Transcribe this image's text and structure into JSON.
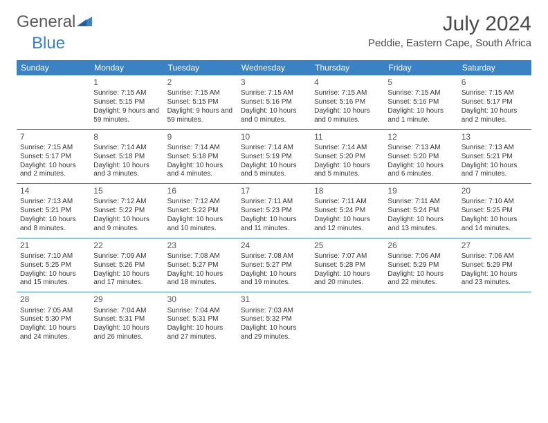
{
  "brand": {
    "part1": "General",
    "part2": "Blue"
  },
  "title": "July 2024",
  "location": "Peddie, Eastern Cape, South Africa",
  "colors": {
    "header_bg": "#3b82c4",
    "header_fg": "#ffffff",
    "cell_border": "#3b82c4",
    "text": "#333333",
    "title_color": "#4a4a4a"
  },
  "weekdays": [
    "Sunday",
    "Monday",
    "Tuesday",
    "Wednesday",
    "Thursday",
    "Friday",
    "Saturday"
  ],
  "weeks": [
    [
      {
        "n": "",
        "sr": "",
        "ss": "",
        "dl": ""
      },
      {
        "n": "1",
        "sr": "Sunrise: 7:15 AM",
        "ss": "Sunset: 5:15 PM",
        "dl": "Daylight: 9 hours and 59 minutes."
      },
      {
        "n": "2",
        "sr": "Sunrise: 7:15 AM",
        "ss": "Sunset: 5:15 PM",
        "dl": "Daylight: 9 hours and 59 minutes."
      },
      {
        "n": "3",
        "sr": "Sunrise: 7:15 AM",
        "ss": "Sunset: 5:16 PM",
        "dl": "Daylight: 10 hours and 0 minutes."
      },
      {
        "n": "4",
        "sr": "Sunrise: 7:15 AM",
        "ss": "Sunset: 5:16 PM",
        "dl": "Daylight: 10 hours and 0 minutes."
      },
      {
        "n": "5",
        "sr": "Sunrise: 7:15 AM",
        "ss": "Sunset: 5:16 PM",
        "dl": "Daylight: 10 hours and 1 minute."
      },
      {
        "n": "6",
        "sr": "Sunrise: 7:15 AM",
        "ss": "Sunset: 5:17 PM",
        "dl": "Daylight: 10 hours and 2 minutes."
      }
    ],
    [
      {
        "n": "7",
        "sr": "Sunrise: 7:15 AM",
        "ss": "Sunset: 5:17 PM",
        "dl": "Daylight: 10 hours and 2 minutes."
      },
      {
        "n": "8",
        "sr": "Sunrise: 7:14 AM",
        "ss": "Sunset: 5:18 PM",
        "dl": "Daylight: 10 hours and 3 minutes."
      },
      {
        "n": "9",
        "sr": "Sunrise: 7:14 AM",
        "ss": "Sunset: 5:18 PM",
        "dl": "Daylight: 10 hours and 4 minutes."
      },
      {
        "n": "10",
        "sr": "Sunrise: 7:14 AM",
        "ss": "Sunset: 5:19 PM",
        "dl": "Daylight: 10 hours and 5 minutes."
      },
      {
        "n": "11",
        "sr": "Sunrise: 7:14 AM",
        "ss": "Sunset: 5:20 PM",
        "dl": "Daylight: 10 hours and 5 minutes."
      },
      {
        "n": "12",
        "sr": "Sunrise: 7:13 AM",
        "ss": "Sunset: 5:20 PM",
        "dl": "Daylight: 10 hours and 6 minutes."
      },
      {
        "n": "13",
        "sr": "Sunrise: 7:13 AM",
        "ss": "Sunset: 5:21 PM",
        "dl": "Daylight: 10 hours and 7 minutes."
      }
    ],
    [
      {
        "n": "14",
        "sr": "Sunrise: 7:13 AM",
        "ss": "Sunset: 5:21 PM",
        "dl": "Daylight: 10 hours and 8 minutes."
      },
      {
        "n": "15",
        "sr": "Sunrise: 7:12 AM",
        "ss": "Sunset: 5:22 PM",
        "dl": "Daylight: 10 hours and 9 minutes."
      },
      {
        "n": "16",
        "sr": "Sunrise: 7:12 AM",
        "ss": "Sunset: 5:22 PM",
        "dl": "Daylight: 10 hours and 10 minutes."
      },
      {
        "n": "17",
        "sr": "Sunrise: 7:11 AM",
        "ss": "Sunset: 5:23 PM",
        "dl": "Daylight: 10 hours and 11 minutes."
      },
      {
        "n": "18",
        "sr": "Sunrise: 7:11 AM",
        "ss": "Sunset: 5:24 PM",
        "dl": "Daylight: 10 hours and 12 minutes."
      },
      {
        "n": "19",
        "sr": "Sunrise: 7:11 AM",
        "ss": "Sunset: 5:24 PM",
        "dl": "Daylight: 10 hours and 13 minutes."
      },
      {
        "n": "20",
        "sr": "Sunrise: 7:10 AM",
        "ss": "Sunset: 5:25 PM",
        "dl": "Daylight: 10 hours and 14 minutes."
      }
    ],
    [
      {
        "n": "21",
        "sr": "Sunrise: 7:10 AM",
        "ss": "Sunset: 5:25 PM",
        "dl": "Daylight: 10 hours and 15 minutes."
      },
      {
        "n": "22",
        "sr": "Sunrise: 7:09 AM",
        "ss": "Sunset: 5:26 PM",
        "dl": "Daylight: 10 hours and 17 minutes."
      },
      {
        "n": "23",
        "sr": "Sunrise: 7:08 AM",
        "ss": "Sunset: 5:27 PM",
        "dl": "Daylight: 10 hours and 18 minutes."
      },
      {
        "n": "24",
        "sr": "Sunrise: 7:08 AM",
        "ss": "Sunset: 5:27 PM",
        "dl": "Daylight: 10 hours and 19 minutes."
      },
      {
        "n": "25",
        "sr": "Sunrise: 7:07 AM",
        "ss": "Sunset: 5:28 PM",
        "dl": "Daylight: 10 hours and 20 minutes."
      },
      {
        "n": "26",
        "sr": "Sunrise: 7:06 AM",
        "ss": "Sunset: 5:29 PM",
        "dl": "Daylight: 10 hours and 22 minutes."
      },
      {
        "n": "27",
        "sr": "Sunrise: 7:06 AM",
        "ss": "Sunset: 5:29 PM",
        "dl": "Daylight: 10 hours and 23 minutes."
      }
    ],
    [
      {
        "n": "28",
        "sr": "Sunrise: 7:05 AM",
        "ss": "Sunset: 5:30 PM",
        "dl": "Daylight: 10 hours and 24 minutes."
      },
      {
        "n": "29",
        "sr": "Sunrise: 7:04 AM",
        "ss": "Sunset: 5:31 PM",
        "dl": "Daylight: 10 hours and 26 minutes."
      },
      {
        "n": "30",
        "sr": "Sunrise: 7:04 AM",
        "ss": "Sunset: 5:31 PM",
        "dl": "Daylight: 10 hours and 27 minutes."
      },
      {
        "n": "31",
        "sr": "Sunrise: 7:03 AM",
        "ss": "Sunset: 5:32 PM",
        "dl": "Daylight: 10 hours and 29 minutes."
      },
      {
        "n": "",
        "sr": "",
        "ss": "",
        "dl": ""
      },
      {
        "n": "",
        "sr": "",
        "ss": "",
        "dl": ""
      },
      {
        "n": "",
        "sr": "",
        "ss": "",
        "dl": ""
      }
    ]
  ]
}
